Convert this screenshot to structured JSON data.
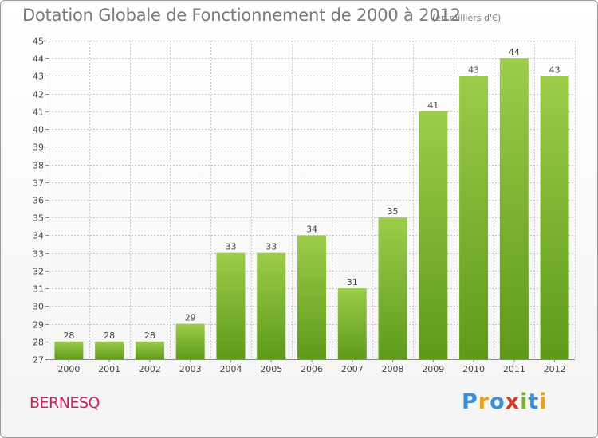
{
  "title": "Dotation Globale de Fonctionnement de 2000 à 2012",
  "subtitle": "(en milliers d'€)",
  "commune": "BERNESQ",
  "logo": {
    "letters": [
      "P",
      "r",
      "o",
      "x",
      "i",
      "t",
      "i"
    ],
    "colors": [
      "#3a8fd6",
      "#e8a020",
      "#3a8fd6",
      "#d13a2e",
      "#7bb32e",
      "#3a8fd6",
      "#e8a020"
    ]
  },
  "colors": {
    "bar_top": "#9ccc4a",
    "bar_bottom": "#5e9a1a",
    "grid": "#c8c8c8",
    "axis": "#888888"
  },
  "chart_data": {
    "type": "bar",
    "title": "Dotation Globale de Fonctionnement de 2000 à 2012",
    "xlabel": "",
    "ylabel": "",
    "ylim": [
      27,
      45
    ],
    "yticks": [
      27,
      28,
      29,
      30,
      31,
      32,
      33,
      34,
      35,
      36,
      37,
      38,
      39,
      40,
      41,
      42,
      43,
      44,
      45
    ],
    "categories": [
      "2000",
      "2001",
      "2002",
      "2003",
      "2004",
      "2005",
      "2006",
      "2007",
      "2008",
      "2009",
      "2010",
      "2011",
      "2012"
    ],
    "values": [
      28,
      28,
      28,
      29,
      33,
      33,
      34,
      31,
      35,
      41,
      43,
      44,
      43
    ],
    "grid": true
  }
}
